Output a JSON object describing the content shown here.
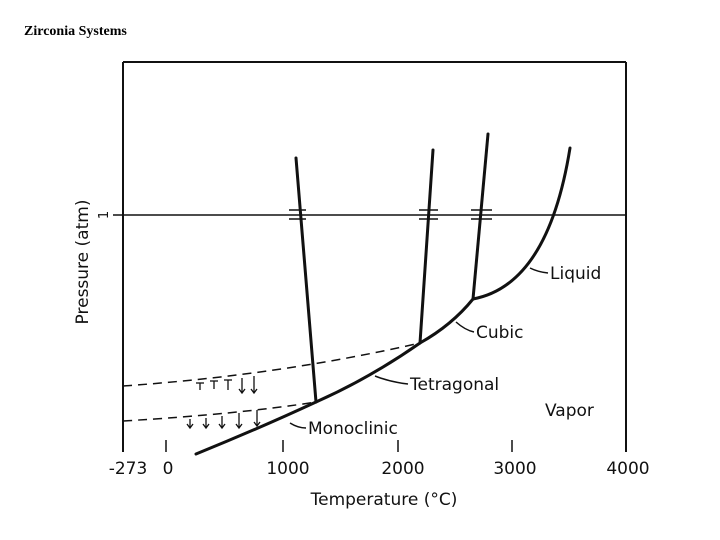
{
  "slide": {
    "title": "Zirconia Systems"
  },
  "diagram": {
    "x_axis_title": "Temperature (°C)",
    "y_axis_title": "Pressure (atm)",
    "y_marker_label": "1",
    "x_tick_labels": [
      "-273",
      "0",
      "1000",
      "2000",
      "3000",
      "4000"
    ],
    "phases": {
      "liquid": "Liquid",
      "cubic": "Cubic",
      "tetragonal": "Tetragonal",
      "monoclinic": "Monoclinic",
      "vapor": "Vapor"
    }
  }
}
